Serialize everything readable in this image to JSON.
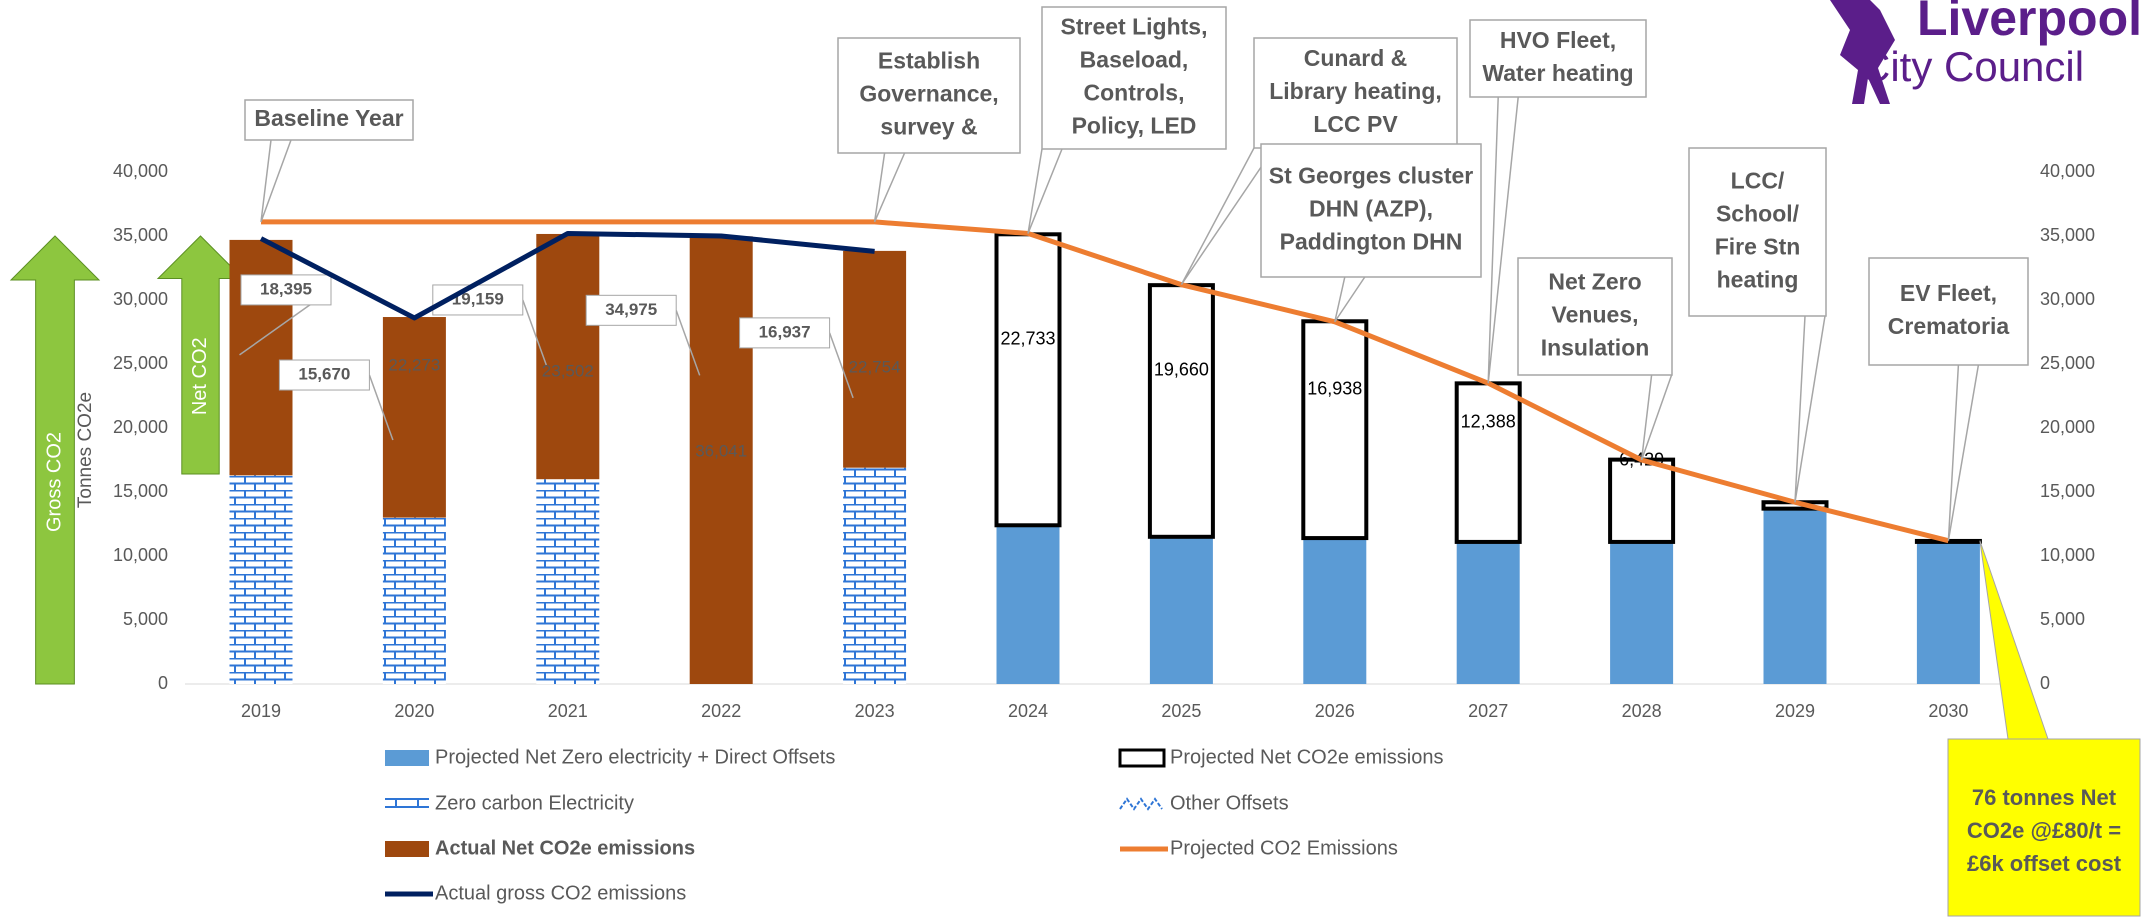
{
  "chart_data": {
    "type": "bar",
    "logo": {
      "title": "Liverpool",
      "subtitle": "City Council"
    },
    "y_label": "Tonnes CO2e",
    "arrows": [
      {
        "text": "Gross CO2",
        "color": "#8dc63f"
      },
      {
        "text": "Net CO2",
        "color": "#8dc63f"
      }
    ],
    "categories": [
      "2019",
      "2020",
      "2021",
      "2022",
      "2023",
      "2024",
      "2025",
      "2026",
      "2027",
      "2028",
      "2029",
      "2030"
    ],
    "ylim": [
      0,
      40000
    ],
    "yticks": [
      0,
      {
        "value": 5000,
        "label": "5,000"
      },
      {
        "value": 10000,
        "label": "10,000"
      },
      {
        "value": 15000,
        "label": "15,000"
      },
      {
        "value": 20000,
        "label": "20,000"
      },
      {
        "value": 25000,
        "label": "25,000"
      },
      {
        "value": 30000,
        "label": "30,000"
      },
      {
        "value": 35000,
        "label": "35,000"
      },
      {
        "value": 40000,
        "label": "40,000"
      }
    ],
    "y2lim": [
      0,
      40000
    ],
    "y2ticks": [
      0,
      {
        "value": 5000,
        "label": "5,000"
      },
      {
        "value": 10000,
        "label": "10,000"
      },
      {
        "value": 15000,
        "label": "15,000"
      },
      {
        "value": 20000,
        "label": "20,000"
      },
      {
        "value": 25000,
        "label": "25,000"
      },
      {
        "value": 30000,
        "label": "30,000"
      },
      {
        "value": 35000,
        "label": "35,000"
      },
      {
        "value": 40000,
        "label": "40,000"
      }
    ],
    "grid": false,
    "series": [
      {
        "name": "Projected Net Zero electricity + Direct Offsets",
        "type": "bar",
        "color": "#5b9bd5",
        "values": [
          null,
          null,
          null,
          null,
          null,
          12400,
          11500,
          11400,
          11100,
          11100,
          13700,
          11100
        ]
      },
      {
        "name": "Projected Net CO2e emissions",
        "type": "bar",
        "color": "#ffffff",
        "outline": "#000000",
        "values": [
          null,
          null,
          null,
          null,
          null,
          22733,
          19660,
          16938,
          12388,
          6429,
          500,
          76
        ],
        "value_labels": [
          null,
          null,
          null,
          null,
          null,
          "22,733",
          "19,660",
          "16,938",
          "12,388",
          "6,429",
          null,
          null
        ]
      },
      {
        "name": "Zero carbon Electricity",
        "type": "bar",
        "color": "#2e75d6",
        "pattern": "brick",
        "values": [
          16300,
          13000,
          16000,
          0,
          16900,
          null,
          null,
          null,
          null,
          null,
          null,
          null
        ]
      },
      {
        "name": "Other Offsets",
        "type": "bar",
        "color": "#2e75d6",
        "pattern": "wave",
        "values": [
          null,
          null,
          null,
          null,
          null,
          null,
          null,
          null,
          null,
          null,
          null,
          null
        ]
      },
      {
        "name": "Actual Net CO2e emissions",
        "type": "bar",
        "color": "#9e480e",
        "bold": true,
        "values": [
          18395,
          15670,
          19159,
          34975,
          16937,
          null,
          null,
          null,
          null,
          null,
          null,
          null
        ],
        "value_labels": [
          "18,395",
          "15,670",
          "19,159",
          "34,975",
          "16,937",
          null,
          null,
          null,
          null,
          null,
          null,
          null
        ]
      },
      {
        "name": "Projected CO2 Emissions",
        "type": "line",
        "color": "#ed7d31",
        "values": [
          36100,
          36100,
          36100,
          36100,
          36100,
          35200,
          31200,
          28300,
          23500,
          17500,
          14200,
          11200
        ]
      },
      {
        "name": "Actual gross CO2 emissions",
        "type": "line",
        "color": "#002060",
        "values": [
          34800,
          28600,
          35200,
          35000,
          33800,
          null,
          null,
          null,
          null,
          null,
          null,
          null
        ]
      }
    ],
    "bar_notes": [
      {
        "category": "2020",
        "text": "22,273"
      },
      {
        "category": "2021",
        "text": "23,502"
      },
      {
        "category": "2022",
        "text": "36,041"
      },
      {
        "category": "2023",
        "text": "22,754"
      }
    ],
    "annotations": [
      {
        "lines": [
          "Baseline Year"
        ],
        "category": "2019"
      },
      {
        "lines": [
          "Establish",
          "Governance,",
          "survey &"
        ],
        "category": "2023"
      },
      {
        "lines": [
          "Street Lights,",
          "Baseload,",
          "Controls,",
          "Policy, LED"
        ],
        "category": "2024"
      },
      {
        "lines": [
          "Cunard &",
          "Library heating,",
          "LCC PV"
        ],
        "category": "2025"
      },
      {
        "lines": [
          "St Georges cluster",
          "DHN (AZP),",
          "Paddington DHN"
        ],
        "category": "2026"
      },
      {
        "lines": [
          "HVO Fleet,",
          "Water heating"
        ],
        "category": "2027"
      },
      {
        "lines": [
          "Net Zero",
          "Venues,",
          "Insulation"
        ],
        "category": "2028"
      },
      {
        "lines": [
          "LCC/",
          "School/",
          "Fire Stn",
          "heating"
        ],
        "category": "2029"
      },
      {
        "lines": [
          "EV Fleet,",
          "Crematoria"
        ],
        "category": "2030"
      }
    ],
    "note": {
      "lines": [
        "76 tonnes Net",
        "CO2e  @£80/t =",
        "£6k offset cost"
      ],
      "color": "#ffff00",
      "category": "2030"
    }
  }
}
